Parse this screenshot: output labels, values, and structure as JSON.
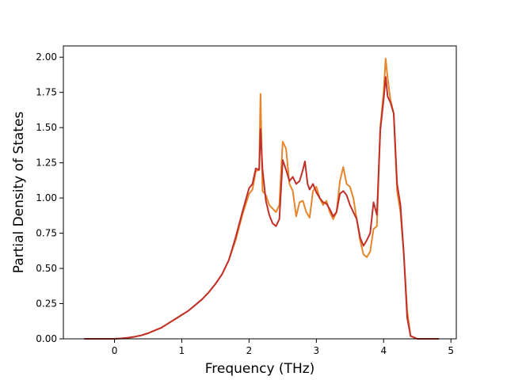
{
  "chart_data": {
    "type": "line",
    "xlabel": "Frequency (THz)",
    "ylabel": "Partial Density of States",
    "xlim": [
      -0.76,
      5.08
    ],
    "ylim": [
      0.0,
      2.08
    ],
    "x_ticks": [
      0,
      1,
      2,
      3,
      4,
      5
    ],
    "x_tick_labels": [
      "0",
      "1",
      "2",
      "3",
      "4",
      "5"
    ],
    "y_ticks": [
      0.0,
      0.25,
      0.5,
      0.75,
      1.0,
      1.25,
      1.5,
      1.75,
      2.0
    ],
    "y_tick_labels": [
      "0.00",
      "0.25",
      "0.50",
      "0.75",
      "1.00",
      "1.25",
      "1.50",
      "1.75",
      "2.00"
    ],
    "grid": false,
    "legend": "none",
    "series": [
      {
        "color": "#e8842a",
        "points": [
          [
            -0.45,
            0
          ],
          [
            0.0,
            0
          ],
          [
            0.1,
            0.003
          ],
          [
            0.2,
            0.008
          ],
          [
            0.3,
            0.015
          ],
          [
            0.4,
            0.025
          ],
          [
            0.5,
            0.04
          ],
          [
            0.6,
            0.06
          ],
          [
            0.7,
            0.08
          ],
          [
            0.8,
            0.11
          ],
          [
            0.9,
            0.14
          ],
          [
            1.0,
            0.17
          ],
          [
            1.1,
            0.2
          ],
          [
            1.2,
            0.24
          ],
          [
            1.3,
            0.28
          ],
          [
            1.4,
            0.33
          ],
          [
            1.5,
            0.39
          ],
          [
            1.6,
            0.46
          ],
          [
            1.7,
            0.56
          ],
          [
            1.8,
            0.7
          ],
          [
            1.9,
            0.88
          ],
          [
            2.0,
            1.03
          ],
          [
            2.05,
            1.06
          ],
          [
            2.1,
            1.19
          ],
          [
            2.15,
            1.2
          ],
          [
            2.17,
            1.74
          ],
          [
            2.2,
            1.05
          ],
          [
            2.25,
            1.02
          ],
          [
            2.3,
            0.95
          ],
          [
            2.4,
            0.9
          ],
          [
            2.45,
            0.95
          ],
          [
            2.5,
            1.4
          ],
          [
            2.55,
            1.35
          ],
          [
            2.6,
            1.1
          ],
          [
            2.65,
            1.05
          ],
          [
            2.7,
            0.87
          ],
          [
            2.75,
            0.97
          ],
          [
            2.8,
            0.98
          ],
          [
            2.85,
            0.9
          ],
          [
            2.9,
            0.86
          ],
          [
            2.95,
            1.05
          ],
          [
            3.0,
            1.08
          ],
          [
            3.05,
            1.0
          ],
          [
            3.1,
            0.95
          ],
          [
            3.15,
            0.98
          ],
          [
            3.2,
            0.9
          ],
          [
            3.25,
            0.85
          ],
          [
            3.3,
            0.9
          ],
          [
            3.35,
            1.12
          ],
          [
            3.4,
            1.22
          ],
          [
            3.45,
            1.1
          ],
          [
            3.5,
            1.08
          ],
          [
            3.55,
            1.0
          ],
          [
            3.6,
            0.85
          ],
          [
            3.65,
            0.7
          ],
          [
            3.7,
            0.6
          ],
          [
            3.75,
            0.58
          ],
          [
            3.8,
            0.62
          ],
          [
            3.85,
            0.78
          ],
          [
            3.9,
            0.8
          ],
          [
            3.95,
            1.5
          ],
          [
            4.0,
            1.75
          ],
          [
            4.03,
            1.99
          ],
          [
            4.06,
            1.85
          ],
          [
            4.1,
            1.7
          ],
          [
            4.15,
            1.6
          ],
          [
            4.2,
            1.05
          ],
          [
            4.25,
            0.9
          ],
          [
            4.3,
            0.6
          ],
          [
            4.35,
            0.2
          ],
          [
            4.4,
            0.02
          ],
          [
            4.5,
            0
          ],
          [
            4.82,
            0
          ]
        ]
      },
      {
        "color": "#c0302a",
        "points": [
          [
            -0.45,
            0
          ],
          [
            0.0,
            0
          ],
          [
            0.1,
            0.003
          ],
          [
            0.2,
            0.008
          ],
          [
            0.3,
            0.015
          ],
          [
            0.4,
            0.025
          ],
          [
            0.5,
            0.04
          ],
          [
            0.6,
            0.06
          ],
          [
            0.7,
            0.08
          ],
          [
            0.8,
            0.11
          ],
          [
            0.9,
            0.14
          ],
          [
            1.0,
            0.17
          ],
          [
            1.1,
            0.2
          ],
          [
            1.2,
            0.24
          ],
          [
            1.3,
            0.28
          ],
          [
            1.4,
            0.33
          ],
          [
            1.5,
            0.39
          ],
          [
            1.6,
            0.46
          ],
          [
            1.7,
            0.56
          ],
          [
            1.8,
            0.72
          ],
          [
            1.9,
            0.9
          ],
          [
            2.0,
            1.07
          ],
          [
            2.05,
            1.1
          ],
          [
            2.1,
            1.21
          ],
          [
            2.15,
            1.2
          ],
          [
            2.17,
            1.49
          ],
          [
            2.2,
            1.2
          ],
          [
            2.25,
            0.98
          ],
          [
            2.3,
            0.88
          ],
          [
            2.35,
            0.82
          ],
          [
            2.4,
            0.8
          ],
          [
            2.45,
            0.85
          ],
          [
            2.5,
            1.27
          ],
          [
            2.55,
            1.2
          ],
          [
            2.6,
            1.12
          ],
          [
            2.65,
            1.15
          ],
          [
            2.7,
            1.1
          ],
          [
            2.75,
            1.12
          ],
          [
            2.8,
            1.2
          ],
          [
            2.83,
            1.26
          ],
          [
            2.87,
            1.1
          ],
          [
            2.9,
            1.06
          ],
          [
            2.95,
            1.1
          ],
          [
            3.0,
            1.04
          ],
          [
            3.05,
            1.0
          ],
          [
            3.1,
            0.97
          ],
          [
            3.15,
            0.96
          ],
          [
            3.2,
            0.92
          ],
          [
            3.25,
            0.87
          ],
          [
            3.3,
            0.9
          ],
          [
            3.35,
            1.03
          ],
          [
            3.4,
            1.05
          ],
          [
            3.45,
            1.02
          ],
          [
            3.5,
            0.95
          ],
          [
            3.55,
            0.9
          ],
          [
            3.6,
            0.85
          ],
          [
            3.65,
            0.72
          ],
          [
            3.7,
            0.66
          ],
          [
            3.75,
            0.7
          ],
          [
            3.8,
            0.75
          ],
          [
            3.85,
            0.97
          ],
          [
            3.9,
            0.88
          ],
          [
            3.95,
            1.48
          ],
          [
            4.0,
            1.7
          ],
          [
            4.03,
            1.86
          ],
          [
            4.06,
            1.72
          ],
          [
            4.1,
            1.68
          ],
          [
            4.15,
            1.6
          ],
          [
            4.2,
            1.1
          ],
          [
            4.25,
            0.95
          ],
          [
            4.3,
            0.6
          ],
          [
            4.35,
            0.15
          ],
          [
            4.4,
            0.02
          ],
          [
            4.5,
            0
          ],
          [
            4.82,
            0
          ]
        ]
      }
    ]
  }
}
